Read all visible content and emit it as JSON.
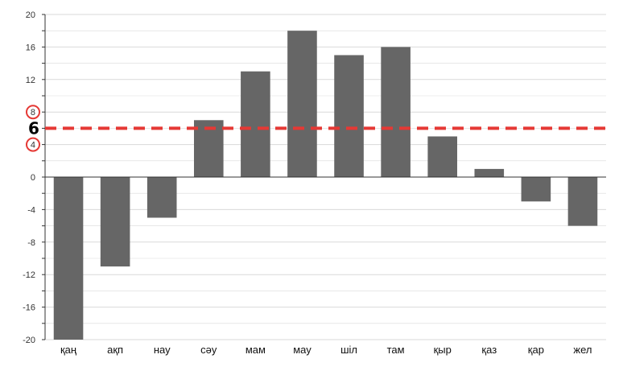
{
  "chart_data": {
    "type": "bar",
    "categories": [
      "қаң",
      "ақп",
      "нау",
      "сәу",
      "мам",
      "мау",
      "шіл",
      "там",
      "қыр",
      "қаз",
      "қар",
      "жел"
    ],
    "values": [
      -20,
      -11,
      -5,
      7,
      13,
      18,
      15,
      16,
      5,
      1,
      -3,
      -6
    ],
    "ylim": [
      -20,
      20
    ],
    "yticks": [
      "20",
      "16",
      "12",
      "8",
      "4",
      "0",
      "-4",
      "-8",
      "-12",
      "-16",
      "-20"
    ],
    "grid": true,
    "reference_line": {
      "value": 6,
      "label": "6",
      "color": "#e53935",
      "style": "dashed"
    },
    "highlighted_ticks": [
      "8",
      "4"
    ],
    "bar_color": "#666666",
    "grid_color": "#d9d9d9",
    "axis_color": "#333333"
  }
}
